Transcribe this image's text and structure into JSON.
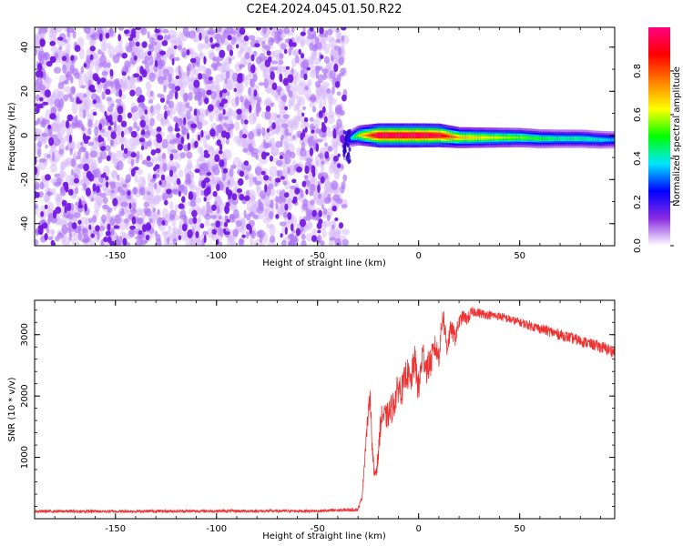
{
  "figure": {
    "title": "C2E4.2024.045.01.50.R22"
  },
  "chart_data": [
    {
      "type": "heatmap",
      "xlabel": "Height of straight line (km)",
      "ylabel": "Frequency (Hz)",
      "xlim": [
        -190,
        97
      ],
      "ylim": [
        -50,
        49
      ],
      "xticks": [
        -150,
        -100,
        -50,
        0,
        50
      ],
      "xtick_labels": [
        "-150",
        "-100",
        "-50",
        "0",
        "50"
      ],
      "yticks": [
        -40,
        -20,
        0,
        20,
        40
      ],
      "ytick_labels": [
        "-40",
        "-20",
        "0",
        "20",
        "40"
      ],
      "noise_region_x": [
        -190,
        -36
      ],
      "signal": {
        "x": [
          -36,
          -30,
          -20,
          -10,
          0,
          10,
          20,
          30,
          40,
          50,
          60,
          70,
          80,
          90,
          97
        ],
        "frequency": [
          -2,
          0,
          0,
          0,
          0,
          0,
          -1,
          -1,
          -1,
          -1,
          -1.5,
          -1.5,
          -1.5,
          -2,
          -2
        ],
        "peak_amplitude": [
          0.25,
          0.6,
          1.0,
          1.0,
          1.0,
          0.95,
          0.7,
          0.65,
          0.6,
          0.55,
          0.5,
          0.45,
          0.45,
          0.4,
          0.35
        ]
      },
      "grid": false
    },
    {
      "type": "colorbar",
      "ylabel": "Normalized spectral amplitude",
      "ylim": [
        0,
        1
      ],
      "ticks": [
        0.0,
        0.2,
        0.4,
        0.6,
        0.8
      ],
      "tick_labels": [
        "0.0",
        "0.2",
        "0.4",
        "0.6",
        "0.8"
      ],
      "colormap": [
        "#ffffff",
        "#8a2be2",
        "#0000ff",
        "#00e5ff",
        "#00ff00",
        "#ffff00",
        "#ff8000",
        "#ff0000",
        "#ff0080"
      ]
    },
    {
      "type": "line",
      "xlabel": "Height of straight line (km)",
      "ylabel": "SNR (10 * v/v)",
      "xlim": [
        -190,
        97
      ],
      "ylim": [
        0,
        3560
      ],
      "xticks": [
        -150,
        -100,
        -50,
        0,
        50
      ],
      "xtick_labels": [
        "-150",
        "-100",
        "-50",
        "0",
        "50"
      ],
      "yticks": [
        1000,
        2000,
        3000
      ],
      "ytick_labels": [
        "1000",
        "2000",
        "3000"
      ],
      "grid": false,
      "series": [
        {
          "color": "#ee3333",
          "x": [
            -190,
            -150,
            -100,
            -50,
            -30,
            -28,
            -26,
            -24,
            -23,
            -22,
            -21,
            -20,
            -19,
            -18,
            -16,
            -14,
            -12,
            -10,
            -8,
            -6,
            -4,
            -2,
            0,
            2,
            4,
            6,
            8,
            10,
            12,
            14,
            16,
            18,
            20,
            22,
            24,
            26,
            28,
            30,
            35,
            40,
            45,
            50,
            55,
            60,
            65,
            70,
            75,
            80,
            85,
            90,
            97
          ],
          "y": [
            120,
            120,
            125,
            125,
            150,
            350,
            1300,
            2050,
            1200,
            700,
            800,
            1000,
            1500,
            1700,
            1650,
            1750,
            1900,
            2150,
            2100,
            2400,
            2200,
            2600,
            2100,
            2700,
            2450,
            2550,
            2800,
            2650,
            3350,
            2800,
            3100,
            2950,
            3200,
            3300,
            3250,
            3350,
            3380,
            3350,
            3320,
            3300,
            3250,
            3200,
            3150,
            3100,
            3050,
            3000,
            2950,
            2900,
            2850,
            2800,
            2720
          ],
          "noise": [
            25,
            25,
            25,
            25,
            30,
            40,
            150,
            150,
            150,
            120,
            150,
            150,
            200,
            200,
            200,
            250,
            250,
            250,
            250,
            250,
            250,
            250,
            300,
            250,
            250,
            250,
            200,
            200,
            200,
            200,
            150,
            150,
            120,
            100,
            100,
            100,
            80,
            80,
            70,
            70,
            70,
            70,
            80,
            80,
            90,
            90,
            90,
            90,
            90,
            100,
            100
          ]
        }
      ]
    }
  ]
}
